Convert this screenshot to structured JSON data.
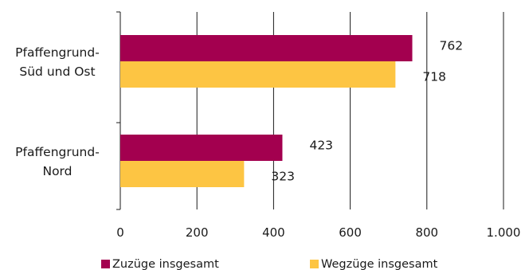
{
  "chart_data": {
    "type": "bar",
    "orientation": "horizontal",
    "categories": [
      [
        "Pfaffengrund-",
        "Süd und Ost"
      ],
      [
        "Pfaffengrund-",
        "Nord"
      ]
    ],
    "series": [
      {
        "name": "Zuzüge insgesamt",
        "color": "#a3004f",
        "values": [
          762,
          423
        ],
        "labels": [
          "762",
          "423"
        ]
      },
      {
        "name": "Wegzüge insgesamt",
        "color": "#fdc543",
        "values": [
          718,
          323
        ],
        "labels": [
          "718",
          "323"
        ]
      }
    ],
    "xlim": [
      0,
      1000
    ],
    "xticks": [
      0,
      200,
      400,
      600,
      800,
      1000
    ],
    "xtick_labels": [
      "0",
      "200",
      "400",
      "600",
      "800",
      "1.000"
    ],
    "grid": "vertical",
    "legend": "bottom"
  }
}
